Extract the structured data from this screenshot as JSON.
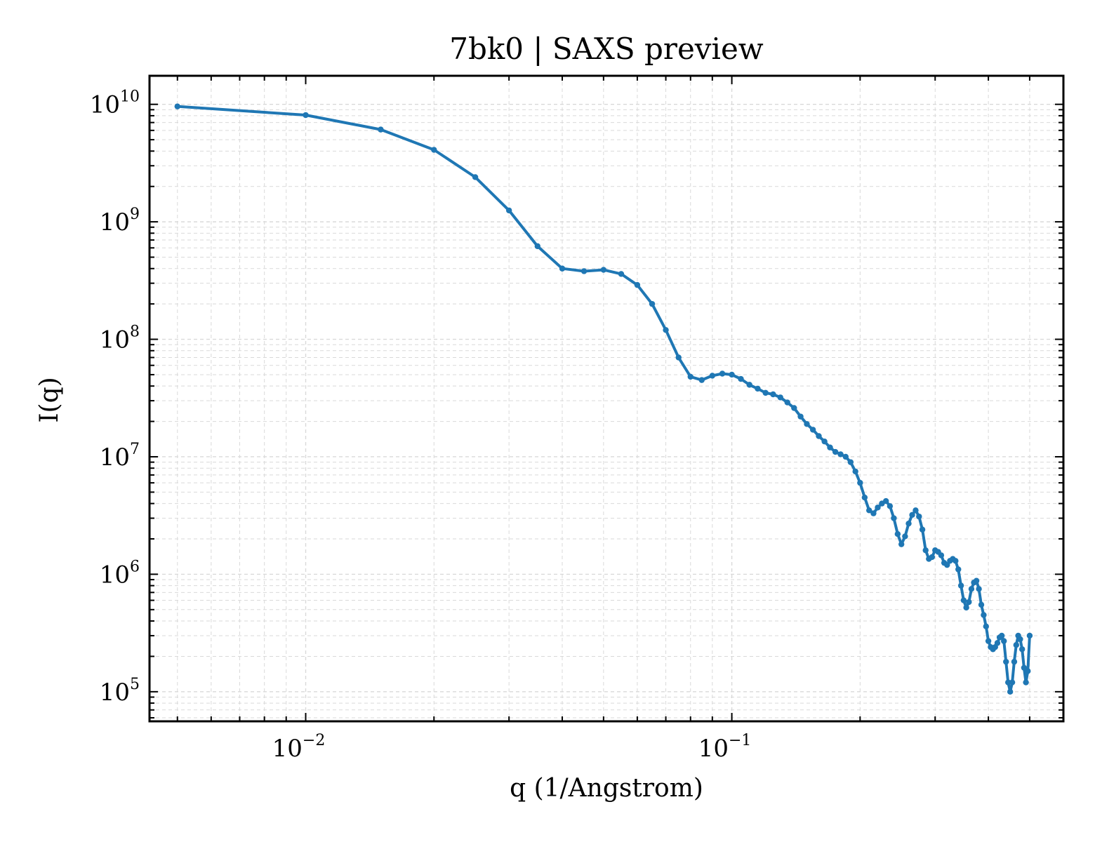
{
  "chart_data": {
    "type": "line",
    "title": "7bk0 | SAXS preview",
    "xlabel": "q (1/Angstrom)",
    "ylabel": "I(q)",
    "xscale": "log",
    "yscale": "log",
    "xlim": [
      0.0043,
      0.6
    ],
    "ylim": [
      56000,
      17500000000.0
    ],
    "grid": true,
    "legend": "none",
    "x_ticks": [
      {
        "value": 0.01,
        "base": "10",
        "exp": "−2"
      },
      {
        "value": 0.1,
        "base": "10",
        "exp": "−1"
      }
    ],
    "y_ticks": [
      {
        "value": 100000.0,
        "base": "10",
        "exp": "5"
      },
      {
        "value": 1000000.0,
        "base": "10",
        "exp": "6"
      },
      {
        "value": 10000000.0,
        "base": "10",
        "exp": "7"
      },
      {
        "value": 100000000.0,
        "base": "10",
        "exp": "8"
      },
      {
        "value": 1000000000.0,
        "base": "10",
        "exp": "9"
      },
      {
        "value": 10000000000.0,
        "base": "10",
        "exp": "10"
      }
    ],
    "colors": {
      "line": "#1f77b4",
      "grid": "#d9d9d9"
    },
    "series": [
      {
        "x": [
          0.005,
          0.01,
          0.015,
          0.02,
          0.025,
          0.03,
          0.035,
          0.04,
          0.045,
          0.05,
          0.055,
          0.06,
          0.065,
          0.07,
          0.075,
          0.08,
          0.085,
          0.09,
          0.095,
          0.1,
          0.105,
          0.11,
          0.115,
          0.12,
          0.125,
          0.13,
          0.135,
          0.14,
          0.145,
          0.15,
          0.155,
          0.16,
          0.165,
          0.17,
          0.175,
          0.18,
          0.185,
          0.19,
          0.195,
          0.2,
          0.205,
          0.21,
          0.215,
          0.22,
          0.225,
          0.23,
          0.235,
          0.24,
          0.245,
          0.25,
          0.255,
          0.26,
          0.265,
          0.27,
          0.275,
          0.28,
          0.285,
          0.29,
          0.295,
          0.3,
          0.305,
          0.31,
          0.315,
          0.32,
          0.325,
          0.33,
          0.335,
          0.34,
          0.345,
          0.35,
          0.355,
          0.36,
          0.365,
          0.37,
          0.375,
          0.38,
          0.385,
          0.39,
          0.395,
          0.4,
          0.405,
          0.41,
          0.415,
          0.42,
          0.425,
          0.43,
          0.435,
          0.44,
          0.445,
          0.45,
          0.455,
          0.46,
          0.465,
          0.47,
          0.475,
          0.48,
          0.485,
          0.49,
          0.495,
          0.5
        ],
        "y": [
          9600000000.0,
          8100000000.0,
          6100000000.0,
          4100000000.0,
          2400000000.0,
          1250000000.0,
          620000000.0,
          400000000.0,
          380000000.0,
          390000000.0,
          360000000.0,
          290000000.0,
          200000000.0,
          120000000.0,
          70000000.0,
          48000000.0,
          45000000.0,
          49000000.0,
          51000000.0,
          50000000.0,
          46000000.0,
          41000000.0,
          38000000.0,
          35000000.0,
          34000000.0,
          32000000.0,
          29000000.0,
          26000000.0,
          22000000.0,
          19000000.0,
          17000000.0,
          15000000.0,
          13500000.0,
          12000000.0,
          11000000.0,
          10500000.0,
          10000000.0,
          9000000.0,
          7500000.0,
          6000000.0,
          4500000.0,
          3500000.0,
          3300000.0,
          3700000.0,
          4000000.0,
          4200000.0,
          3800000.0,
          3000000.0,
          2200000.0,
          1800000.0,
          2100000.0,
          2700000.0,
          3200000.0,
          3500000.0,
          3100000.0,
          2400000.0,
          1600000.0,
          1350000.0,
          1400000.0,
          1600000.0,
          1550000.0,
          1450000.0,
          1250000.0,
          1200000.0,
          1300000.0,
          1350000.0,
          1300000.0,
          1100000.0,
          800000.0,
          600000.0,
          520000.0,
          580000.0,
          750000.0,
          850000.0,
          880000.0,
          750000.0,
          550000.0,
          450000.0,
          360000.0,
          270000.0,
          240000.0,
          230000.0,
          240000.0,
          260000.0,
          290000.0,
          300000.0,
          270000.0,
          180000.0,
          120000.0,
          100000.0,
          120000.0,
          180000.0,
          250000.0,
          300000.0,
          280000.0,
          230000.0,
          160000.0,
          120000.0,
          150000.0,
          300000.0
        ]
      }
    ]
  }
}
